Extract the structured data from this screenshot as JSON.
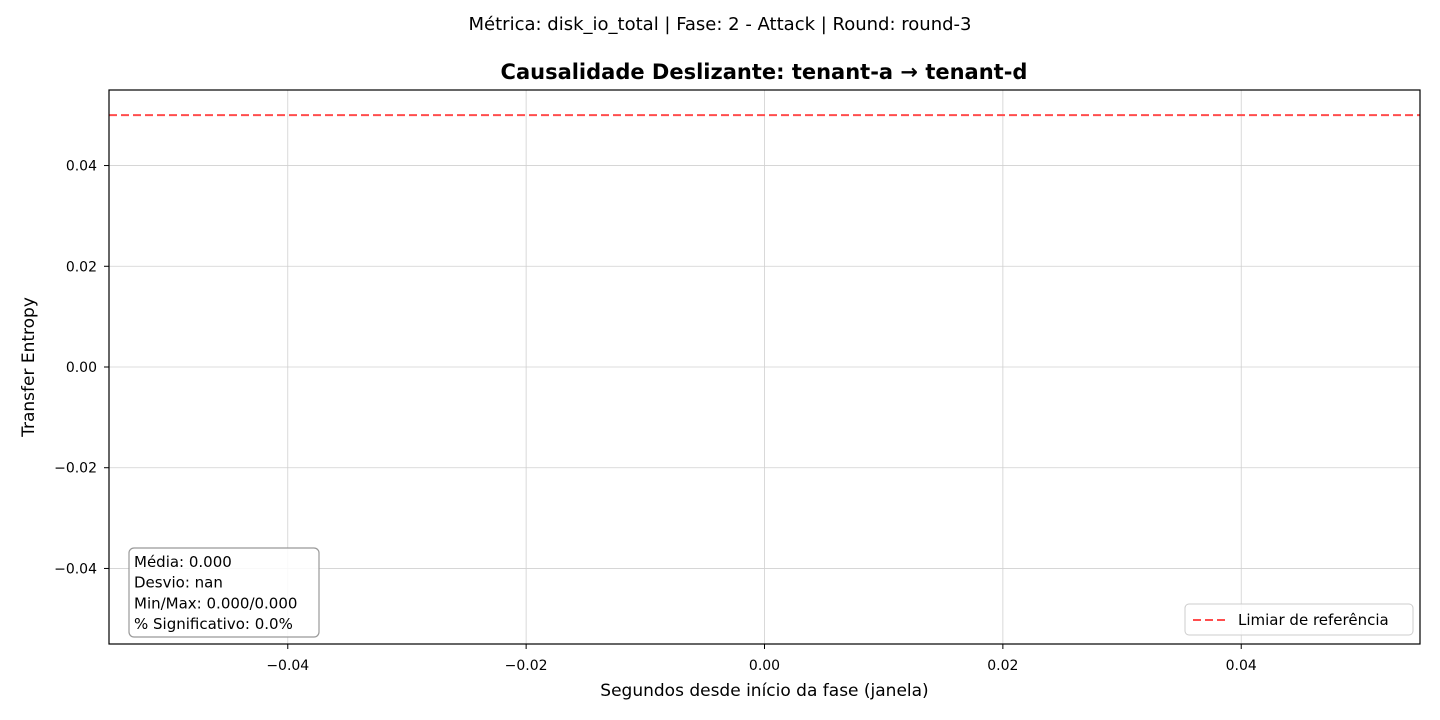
{
  "suptitle": "Métrica: disk_io_total | Fase: 2 - Attack | Round: round-3",
  "chart_data": {
    "type": "line",
    "title": "Causalidade Deslizante: tenant-a → tenant-d",
    "xlabel": "Segundos desde início da fase (janela)",
    "ylabel": "Transfer Entropy",
    "xlim": [
      -0.055,
      0.055
    ],
    "ylim": [
      -0.055,
      0.055
    ],
    "xticks": [
      -0.04,
      -0.02,
      0.0,
      0.02,
      0.04
    ],
    "xtick_labels": [
      "−0.04",
      "−0.02",
      "0.00",
      "0.02",
      "0.04"
    ],
    "yticks": [
      0.04,
      0.02,
      0.0,
      -0.02,
      -0.04
    ],
    "ytick_labels": [
      "0.04",
      "0.02",
      "0.00",
      "−0.02",
      "−0.04"
    ],
    "grid": true,
    "series": [],
    "reference_line": {
      "name": "Limiar de referência",
      "y": 0.05,
      "color": "#ff4d4d",
      "style": "dashed"
    },
    "legend_position": "lower-right",
    "stats_box": {
      "position": "lower-left",
      "lines": [
        "Média: 0.000",
        "Desvio: nan",
        "Min/Max: 0.000/0.000",
        "% Significativo: 0.0%"
      ]
    }
  }
}
